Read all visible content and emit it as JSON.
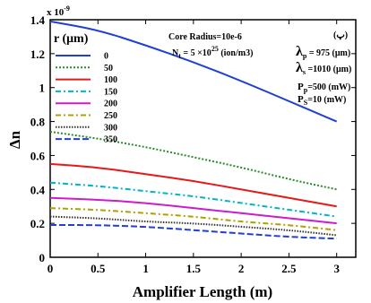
{
  "chart_data": {
    "type": "line",
    "xlabel": "Amplifier Length (m)",
    "ylabel": "Δn",
    "y_multiplier": "x 10",
    "y_exponent": "-9",
    "xlim": [
      0,
      3.2
    ],
    "ylim": [
      0,
      1.4
    ],
    "x_ticks": [
      "0",
      "0.5",
      "1",
      "1.5",
      "2",
      "2.5",
      "3"
    ],
    "y_ticks": [
      "0",
      "0.2",
      "0.4",
      "0.6",
      "0.8",
      "1",
      "1.2",
      "1.4"
    ],
    "x_tick_values": [
      0,
      0.5,
      1,
      1.5,
      2,
      2.5,
      3
    ],
    "y_tick_values": [
      0,
      0.2,
      0.4,
      0.6,
      0.8,
      1,
      1.2,
      1.4
    ],
    "legend_title": "r (μm)",
    "legend_placement": "top-left",
    "x": [
      0,
      0.5,
      1,
      1.5,
      2,
      2.5,
      3
    ],
    "series": [
      {
        "name": "0",
        "color": "#1f3fd6",
        "dash": "solid",
        "values": [
          1.39,
          1.34,
          1.25,
          1.15,
          1.04,
          0.92,
          0.8
        ]
      },
      {
        "name": "50",
        "color": "#2a8a2a",
        "dash": "dot",
        "values": [
          0.74,
          0.7,
          0.65,
          0.59,
          0.53,
          0.46,
          0.4
        ]
      },
      {
        "name": "100",
        "color": "#e81818",
        "dash": "solid",
        "values": [
          0.55,
          0.53,
          0.49,
          0.45,
          0.4,
          0.35,
          0.3
        ]
      },
      {
        "name": "150",
        "color": "#00b5c8",
        "dash": "dashdot",
        "values": [
          0.44,
          0.42,
          0.39,
          0.36,
          0.32,
          0.28,
          0.24
        ]
      },
      {
        "name": "200",
        "color": "#cc1ccc",
        "dash": "solid",
        "values": [
          0.35,
          0.34,
          0.32,
          0.29,
          0.26,
          0.23,
          0.2
        ]
      },
      {
        "name": "250",
        "color": "#b0a000",
        "dash": "dashdot",
        "values": [
          0.29,
          0.28,
          0.26,
          0.24,
          0.21,
          0.19,
          0.16
        ]
      },
      {
        "name": "300",
        "color": "#333333",
        "dash": "dotfine",
        "values": [
          0.24,
          0.23,
          0.21,
          0.2,
          0.18,
          0.16,
          0.13
        ]
      },
      {
        "name": "350",
        "color": "#1f3fd6",
        "dash": "dashed",
        "values": [
          0.19,
          0.19,
          0.18,
          0.16,
          0.14,
          0.12,
          0.11
        ]
      }
    ],
    "annotations": {
      "core_radius": "Core Radius=10e-6",
      "nt_prefix": "N",
      "nt_sub": "t",
      "nt_mid": " = 5 ×10",
      "nt_exp": "25",
      "nt_unit": " (ion/m3)",
      "panel_tag": "(پ)",
      "lambda_p_sym": "λ",
      "lambda_p_sub": "p",
      "lambda_p_val": " = 975 (μm)",
      "lambda_s_sym": "λ",
      "lambda_s_sub": "s",
      "lambda_s_val": " =1010 (μm)",
      "pp_sym": "P",
      "pp_sub": "p",
      "pp_val": "=500 (mW)",
      "ps_sym": "P",
      "ps_sub": "S",
      "ps_val": "=10 (mW)"
    }
  }
}
